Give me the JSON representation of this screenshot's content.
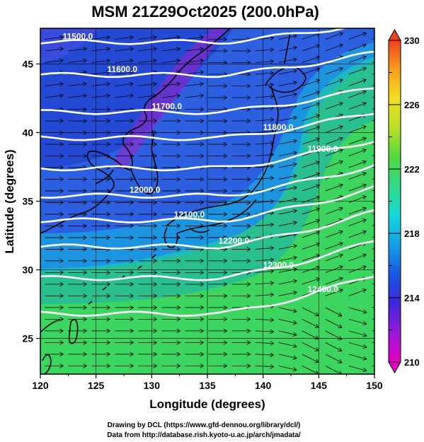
{
  "title": "MSM 21Z29Oct2025 (200.0hPa)",
  "xlabel": "Longitude (degrees)",
  "ylabel": "Latitude  (degrees)",
  "x_ticks": [
    120,
    125,
    130,
    135,
    140,
    145,
    150
  ],
  "y_ticks": [
    25,
    30,
    35,
    40,
    45
  ],
  "xlim": [
    120,
    150
  ],
  "ylim": [
    22.4,
    47.6
  ],
  "colorbar": {
    "ticks": [
      210,
      214,
      218,
      222,
      226,
      230
    ],
    "range": [
      210,
      230
    ],
    "colors": [
      "#e400c0",
      "#9a18d8",
      "#3c28d8",
      "#1a58e0",
      "#14a0e8",
      "#14d8d8",
      "#30d888",
      "#50d840",
      "#b8e028",
      "#f0e020",
      "#f8a020",
      "#f04020"
    ]
  },
  "contours": [
    {
      "label": "11500.0",
      "lat": 46.6
    },
    {
      "label": "11600.0",
      "lat": 44.2
    },
    {
      "label": "11700.0",
      "lat": 41.5
    },
    {
      "label": "11800.0",
      "lat": 39.6
    },
    {
      "label": "11900.0",
      "lat": 37.4
    },
    {
      "label": "12000.0",
      "lat": 35.4
    },
    {
      "label": "12100.0",
      "lat": 33.6
    },
    {
      "label": "12200.0",
      "lat": 31.7
    },
    {
      "label": "12300.0",
      "lat": 29.4
    },
    {
      "label": "12400.0",
      "lat": 26.8
    }
  ],
  "credits": {
    "line1": "Drawing by DCL (https://www.gfd-dennou.org/library/dcl/)",
    "line2": "Data from http://database.rish.kyoto-u.ac.jp/arch/jmadata/"
  }
}
